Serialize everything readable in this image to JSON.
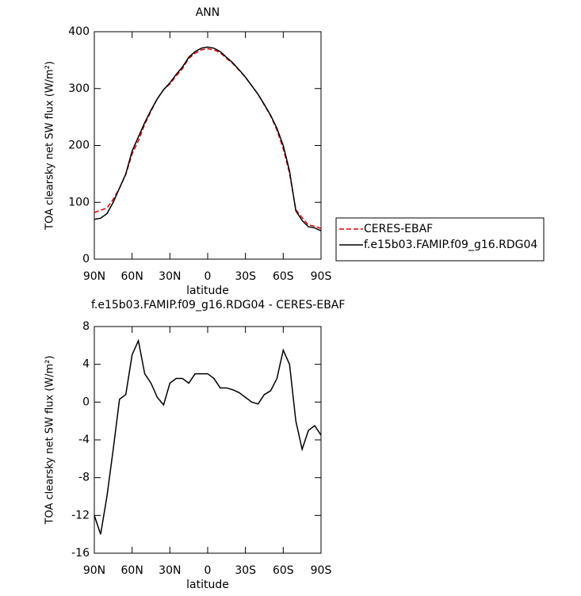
{
  "chart_data": [
    {
      "type": "line",
      "title": "ANN",
      "xlabel": "latitude",
      "ylabel": "TOA clearsky net SW flux (W/m²)",
      "x": [
        90,
        85,
        80,
        75,
        70,
        65,
        60,
        55,
        50,
        45,
        40,
        35,
        30,
        25,
        20,
        15,
        10,
        5,
        0,
        -5,
        -10,
        -15,
        -20,
        -25,
        -30,
        -35,
        -40,
        -45,
        -50,
        -55,
        -60,
        -65,
        -70,
        -75,
        -80,
        -85,
        -90
      ],
      "series": [
        {
          "name": "CERES-EBAF",
          "color": "#e00000",
          "dashed": true,
          "values": [
            82,
            86,
            90,
            105,
            125,
            149,
            185,
            208,
            237,
            260,
            282,
            298,
            308,
            322,
            335,
            353,
            362,
            368,
            370,
            368,
            363,
            353,
            344,
            332,
            320,
            305,
            290,
            271,
            252,
            227,
            194,
            151,
            87,
            73,
            60,
            58,
            54
          ]
        },
        {
          "name": "f.e15b03.FAMIP.f09_g16.RDG04",
          "color": "#000000",
          "dashed": false,
          "values": [
            70,
            72,
            80,
            100,
            125,
            150,
            190,
            215,
            240,
            262,
            282,
            298,
            310,
            325,
            338,
            355,
            365,
            371,
            373,
            371,
            365,
            355,
            345,
            333,
            320,
            305,
            290,
            272,
            253,
            230,
            200,
            155,
            85,
            68,
            57,
            55,
            50
          ]
        }
      ],
      "xlim": [
        90,
        -90
      ],
      "xticks": [
        {
          "value": 90,
          "label": "90N"
        },
        {
          "value": 60,
          "label": "60N"
        },
        {
          "value": 30,
          "label": "30N"
        },
        0,
        {
          "value": -30,
          "label": "30S"
        },
        {
          "value": -60,
          "label": "60S"
        },
        {
          "value": -90,
          "label": "90S"
        }
      ],
      "ylim": [
        0,
        400
      ],
      "yticks": [
        0,
        100,
        200,
        300,
        400
      ],
      "legend": "right"
    },
    {
      "type": "line",
      "title": "f.e15b03.FAMIP.f09_g16.RDG04 - CERES-EBAF",
      "xlabel": "latitude",
      "ylabel": "TOA clearsky net SW flux (W/m²)",
      "x": [
        90,
        85,
        80,
        75,
        70,
        65,
        60,
        55,
        50,
        45,
        40,
        35,
        30,
        25,
        20,
        15,
        10,
        5,
        0,
        -5,
        -10,
        -15,
        -20,
        -25,
        -30,
        -35,
        -40,
        -45,
        -50,
        -55,
        -60,
        -65,
        -70,
        -75,
        -80,
        -85,
        -90
      ],
      "series": [
        {
          "color": "#000000",
          "dashed": false,
          "values": [
            -12,
            -14,
            -10,
            -5,
            0.3,
            0.8,
            5,
            6.5,
            3,
            2,
            0.5,
            -0.3,
            2,
            2.5,
            2.5,
            2,
            3,
            3,
            3,
            2.5,
            1.5,
            1.5,
            1.3,
            1,
            0.5,
            0,
            -0.2,
            0.8,
            1.2,
            2.5,
            5.5,
            4,
            -2,
            -5,
            -3,
            -2.5,
            -3.5
          ]
        }
      ],
      "xlim": [
        90,
        -90
      ],
      "xticks": [
        {
          "value": 90,
          "label": "90N"
        },
        {
          "value": 60,
          "label": "60N"
        },
        {
          "value": 30,
          "label": "30N"
        },
        0,
        {
          "value": -30,
          "label": "30S"
        },
        {
          "value": -60,
          "label": "60S"
        },
        {
          "value": -90,
          "label": "90S"
        }
      ],
      "ylim": [
        -16,
        8
      ],
      "yticks": [
        -16,
        -12,
        -8,
        -4,
        0,
        4,
        8
      ]
    }
  ]
}
